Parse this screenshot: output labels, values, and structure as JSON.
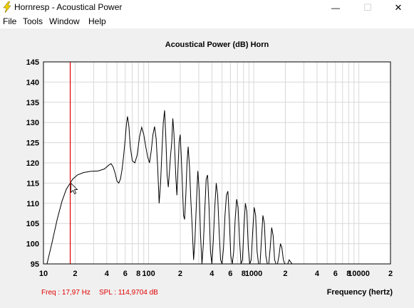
{
  "window": {
    "title": "Hornresp - Acoustical Power",
    "minimize_glyph": "—",
    "maximize_glyph": "☐",
    "close_glyph": "✕"
  },
  "menu": {
    "items": [
      "File",
      "Tools",
      "Window",
      "Help"
    ]
  },
  "status": {
    "freq": "Freq : 17,97 Hz",
    "spl": "SPL : 114,9704 dB"
  },
  "chart_data": {
    "type": "line",
    "title": "Acoustical Power (dB)   Horn",
    "xlabel": "Frequency (hertz)",
    "ylabel": "",
    "x_scale": "log",
    "xlim": [
      10,
      20000
    ],
    "ylim": [
      95,
      145
    ],
    "yticks": [
      95,
      100,
      105,
      110,
      115,
      120,
      125,
      130,
      135,
      140,
      145
    ],
    "xtick_labels": [
      {
        "x": 10,
        "label": "10"
      },
      {
        "x": 20,
        "label": "2"
      },
      {
        "x": 40,
        "label": "4"
      },
      {
        "x": 60,
        "label": "6"
      },
      {
        "x": 80,
        "label": "8"
      },
      {
        "x": 100,
        "label": "100"
      },
      {
        "x": 200,
        "label": "2"
      },
      {
        "x": 400,
        "label": "4"
      },
      {
        "x": 600,
        "label": "6"
      },
      {
        "x": 800,
        "label": "8"
      },
      {
        "x": 1000,
        "label": "1000"
      },
      {
        "x": 2000,
        "label": "2"
      },
      {
        "x": 4000,
        "label": "4"
      },
      {
        "x": 6000,
        "label": "6"
      },
      {
        "x": 8000,
        "label": "8"
      },
      {
        "x": 10000,
        "label": "10000"
      },
      {
        "x": 20000,
        "label": "2"
      }
    ],
    "grid": true,
    "cursor_x": 17.97,
    "cursor_y": 114.97,
    "colors": {
      "line": "#000000",
      "cursor": "#e00000",
      "grid": "#d8d8d8",
      "plot_bg": "#ffffff"
    },
    "series": [
      {
        "values_x": [
          10.8,
          12,
          13.5,
          15,
          16.5,
          17.97,
          19,
          21,
          24,
          28,
          33,
          38,
          42,
          44,
          46,
          48,
          50,
          52,
          54,
          56,
          58,
          60,
          61.5,
          63,
          65,
          67,
          70,
          74,
          78,
          82,
          86,
          90,
          94,
          98,
          102,
          106,
          110,
          114,
          118,
          122,
          126,
          130,
          134,
          138,
          142,
          146,
          150,
          154,
          158,
          162,
          166,
          170,
          174,
          178,
          182,
          186,
          190,
          195,
          200,
          205,
          210,
          215,
          220,
          226,
          232,
          238,
          245,
          252,
          260,
          268,
          276,
          285,
          294,
          303,
          312,
          322,
          332,
          342,
          353,
          364,
          376,
          388,
          400,
          413,
          426,
          440,
          454,
          469,
          484,
          500,
          516,
          533,
          550,
          568,
          586,
          605,
          625,
          645,
          666,
          688,
          710,
          733,
          757,
          782,
          807,
          833,
          860,
          888,
          917,
          947,
          978,
          1010,
          1043,
          1077,
          1112,
          1148,
          1185,
          1223,
          1263,
          1304,
          1346,
          1390,
          1435,
          1482,
          1530,
          1580,
          1631,
          1684,
          1739,
          1796,
          1854,
          1914,
          1976,
          2040,
          2106,
          2174,
          2245,
          2318,
          2393,
          2471
        ],
        "values_y": [
          95,
          100,
          106,
          110.5,
          113.5,
          115,
          116,
          117,
          117.6,
          117.9,
          118,
          118.5,
          119.5,
          119.8,
          119,
          117.5,
          115.5,
          115,
          116,
          118.5,
          122,
          126,
          129.5,
          131.5,
          129,
          124,
          120.5,
          120,
          122,
          126.5,
          128.8,
          127,
          124,
          121.5,
          120,
          123,
          127,
          129,
          126,
          119,
          110,
          115,
          123,
          130,
          133,
          126,
          117,
          114,
          118,
          122,
          125,
          131,
          127.5,
          122,
          116,
          112,
          118,
          125,
          127,
          121,
          114,
          107,
          106,
          112,
          120,
          124,
          119,
          111,
          104,
          96,
          101,
          110,
          118,
          113,
          102,
          95,
          100,
          108,
          116,
          117,
          109,
          98,
          95,
          101,
          109,
          115,
          112,
          103,
          96,
          95,
          99,
          107,
          112,
          113,
          106,
          97,
          95,
          98,
          106,
          111,
          109,
          101,
          95,
          96,
          104,
          110,
          108,
          99,
          95,
          96,
          103,
          109,
          107,
          98,
          95,
          95,
          101,
          107,
          105,
          97,
          95,
          95,
          99,
          104,
          102,
          96,
          95,
          95,
          97,
          100,
          99,
          96,
          95,
          95,
          95,
          96,
          95.5,
          95,
          95,
          95
        ]
      }
    ]
  }
}
